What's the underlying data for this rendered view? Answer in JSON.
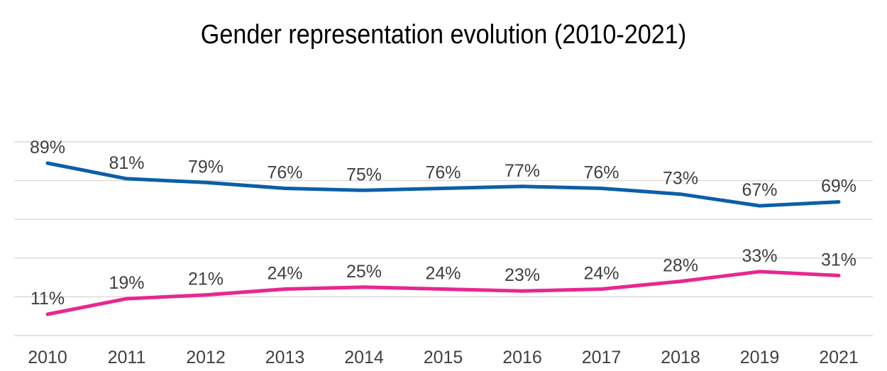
{
  "chart_data": {
    "type": "line",
    "title": "Gender representation evolution (2010-2021)",
    "categories": [
      "2010",
      "2011",
      "2012",
      "2013",
      "2014",
      "2015",
      "2016",
      "2017",
      "2018",
      "2019",
      "2021"
    ],
    "series": [
      {
        "color": "#0b5fa8",
        "values": [
          89,
          81,
          79,
          76,
          75,
          76,
          77,
          76,
          73,
          67,
          69
        ],
        "labels": [
          "89%",
          "81%",
          "79%",
          "76%",
          "75%",
          "76%",
          "77%",
          "76%",
          "73%",
          "67%",
          "69%"
        ]
      },
      {
        "color": "#e8278f",
        "values": [
          11,
          19,
          21,
          24,
          25,
          24,
          23,
          24,
          28,
          33,
          31
        ],
        "labels": [
          "11%",
          "19%",
          "21%",
          "24%",
          "25%",
          "24%",
          "23%",
          "24%",
          "28%",
          "33%",
          "31%"
        ]
      }
    ],
    "ylim": [
      0,
      100
    ],
    "grid": true,
    "legend": "none"
  }
}
